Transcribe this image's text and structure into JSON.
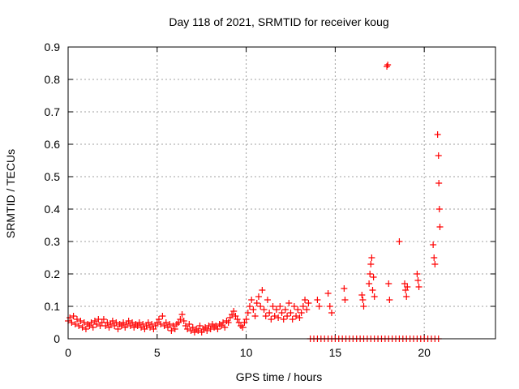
{
  "chart_data": {
    "type": "scatter",
    "title": "Day 118 of 2021, SRMTID for receiver koug",
    "xlabel": "GPS time / hours",
    "ylabel": "SRMTID / TECUs",
    "xlim": [
      0,
      24
    ],
    "ylim": [
      0,
      0.9
    ],
    "xticks": [
      0,
      5,
      10,
      15,
      20
    ],
    "xtick_labels": [
      "0",
      "5",
      "10",
      "15",
      "20"
    ],
    "yticks": [
      0,
      0.1,
      0.2,
      0.3,
      0.4,
      0.5,
      0.6,
      0.7,
      0.8,
      0.9
    ],
    "ytick_labels": [
      "0",
      "0.1",
      "0.2",
      "0.3",
      "0.4",
      "0.5",
      "0.6",
      "0.7",
      "0.8",
      "0.9"
    ],
    "grid": true,
    "marker": "+",
    "color": "#ff0000",
    "series": [
      {
        "name": "SRMTID",
        "points": [
          [
            0.0,
            0.055
          ],
          [
            0.1,
            0.065
          ],
          [
            0.2,
            0.05
          ],
          [
            0.3,
            0.07
          ],
          [
            0.4,
            0.045
          ],
          [
            0.5,
            0.06
          ],
          [
            0.6,
            0.04
          ],
          [
            0.7,
            0.055
          ],
          [
            0.8,
            0.035
          ],
          [
            0.9,
            0.05
          ],
          [
            1.0,
            0.03
          ],
          [
            1.1,
            0.045
          ],
          [
            1.2,
            0.04
          ],
          [
            1.3,
            0.05
          ],
          [
            1.4,
            0.035
          ],
          [
            1.5,
            0.055
          ],
          [
            1.6,
            0.045
          ],
          [
            1.7,
            0.06
          ],
          [
            1.8,
            0.04
          ],
          [
            1.9,
            0.05
          ],
          [
            2.0,
            0.06
          ],
          [
            2.1,
            0.04
          ],
          [
            2.2,
            0.05
          ],
          [
            2.3,
            0.035
          ],
          [
            2.4,
            0.045
          ],
          [
            2.5,
            0.055
          ],
          [
            2.6,
            0.04
          ],
          [
            2.7,
            0.05
          ],
          [
            2.8,
            0.03
          ],
          [
            2.9,
            0.045
          ],
          [
            3.0,
            0.04
          ],
          [
            3.1,
            0.05
          ],
          [
            3.2,
            0.035
          ],
          [
            3.3,
            0.045
          ],
          [
            3.4,
            0.055
          ],
          [
            3.5,
            0.04
          ],
          [
            3.6,
            0.05
          ],
          [
            3.7,
            0.035
          ],
          [
            3.8,
            0.045
          ],
          [
            3.9,
            0.04
          ],
          [
            4.0,
            0.05
          ],
          [
            4.1,
            0.035
          ],
          [
            4.2,
            0.045
          ],
          [
            4.3,
            0.03
          ],
          [
            4.4,
            0.04
          ],
          [
            4.5,
            0.05
          ],
          [
            4.6,
            0.035
          ],
          [
            4.7,
            0.045
          ],
          [
            4.8,
            0.03
          ],
          [
            4.9,
            0.04
          ],
          [
            5.0,
            0.05
          ],
          [
            5.1,
            0.06
          ],
          [
            5.2,
            0.045
          ],
          [
            5.3,
            0.07
          ],
          [
            5.4,
            0.04
          ],
          [
            5.5,
            0.05
          ],
          [
            5.6,
            0.035
          ],
          [
            5.7,
            0.045
          ],
          [
            5.8,
            0.025
          ],
          [
            5.9,
            0.04
          ],
          [
            6.0,
            0.03
          ],
          [
            6.1,
            0.045
          ],
          [
            6.2,
            0.05
          ],
          [
            6.3,
            0.06
          ],
          [
            6.4,
            0.075
          ],
          [
            6.5,
            0.055
          ],
          [
            6.6,
            0.04
          ],
          [
            6.7,
            0.03
          ],
          [
            6.8,
            0.045
          ],
          [
            6.9,
            0.025
          ],
          [
            7.0,
            0.035
          ],
          [
            7.1,
            0.02
          ],
          [
            7.2,
            0.03
          ],
          [
            7.3,
            0.025
          ],
          [
            7.4,
            0.04
          ],
          [
            7.5,
            0.02
          ],
          [
            7.6,
            0.03
          ],
          [
            7.7,
            0.035
          ],
          [
            7.8,
            0.025
          ],
          [
            7.9,
            0.04
          ],
          [
            8.0,
            0.03
          ],
          [
            8.1,
            0.045
          ],
          [
            8.2,
            0.035
          ],
          [
            8.3,
            0.04
          ],
          [
            8.4,
            0.03
          ],
          [
            8.5,
            0.045
          ],
          [
            8.6,
            0.04
          ],
          [
            8.7,
            0.05
          ],
          [
            8.8,
            0.035
          ],
          [
            8.9,
            0.055
          ],
          [
            9.0,
            0.05
          ],
          [
            9.1,
            0.065
          ],
          [
            9.2,
            0.075
          ],
          [
            9.3,
            0.085
          ],
          [
            9.4,
            0.07
          ],
          [
            9.5,
            0.06
          ],
          [
            9.6,
            0.05
          ],
          [
            9.7,
            0.04
          ],
          [
            9.8,
            0.035
          ],
          [
            9.9,
            0.05
          ],
          [
            10.0,
            0.06
          ],
          [
            10.1,
            0.08
          ],
          [
            10.2,
            0.1
          ],
          [
            10.3,
            0.12
          ],
          [
            10.4,
            0.09
          ],
          [
            10.5,
            0.07
          ],
          [
            10.6,
            0.11
          ],
          [
            10.7,
            0.13
          ],
          [
            10.8,
            0.1
          ],
          [
            10.9,
            0.15
          ],
          [
            11.0,
            0.09
          ],
          [
            11.1,
            0.07
          ],
          [
            11.2,
            0.12
          ],
          [
            11.3,
            0.08
          ],
          [
            11.4,
            0.06
          ],
          [
            11.5,
            0.1
          ],
          [
            11.6,
            0.07
          ],
          [
            11.7,
            0.09
          ],
          [
            11.8,
            0.065
          ],
          [
            11.9,
            0.1
          ],
          [
            12.0,
            0.08
          ],
          [
            12.1,
            0.06
          ],
          [
            12.2,
            0.09
          ],
          [
            12.3,
            0.07
          ],
          [
            12.4,
            0.11
          ],
          [
            12.5,
            0.08
          ],
          [
            12.6,
            0.06
          ],
          [
            12.7,
            0.1
          ],
          [
            12.8,
            0.07
          ],
          [
            12.9,
            0.09
          ],
          [
            13.0,
            0.065
          ],
          [
            13.1,
            0.08
          ],
          [
            13.2,
            0.1
          ],
          [
            13.3,
            0.12
          ],
          [
            13.4,
            0.09
          ],
          [
            13.5,
            0.11
          ],
          [
            14.0,
            0.12
          ],
          [
            14.1,
            0.1
          ],
          [
            14.6,
            0.14
          ],
          [
            14.7,
            0.1
          ],
          [
            14.8,
            0.08
          ],
          [
            15.5,
            0.155
          ],
          [
            15.55,
            0.12
          ],
          [
            16.5,
            0.135
          ],
          [
            16.55,
            0.12
          ],
          [
            16.6,
            0.1
          ],
          [
            16.9,
            0.17
          ],
          [
            16.95,
            0.2
          ],
          [
            17.0,
            0.23
          ],
          [
            17.05,
            0.25
          ],
          [
            17.1,
            0.15
          ],
          [
            17.15,
            0.19
          ],
          [
            17.2,
            0.13
          ],
          [
            17.9,
            0.84
          ],
          [
            17.95,
            0.845
          ],
          [
            18.0,
            0.17
          ],
          [
            18.05,
            0.12
          ],
          [
            18.6,
            0.3
          ],
          [
            18.9,
            0.17
          ],
          [
            18.95,
            0.15
          ],
          [
            19.0,
            0.13
          ],
          [
            19.05,
            0.16
          ],
          [
            19.6,
            0.2
          ],
          [
            19.65,
            0.18
          ],
          [
            19.7,
            0.16
          ],
          [
            20.5,
            0.29
          ],
          [
            20.55,
            0.25
          ],
          [
            20.6,
            0.23
          ],
          [
            20.75,
            0.63
          ],
          [
            20.8,
            0.565
          ],
          [
            20.82,
            0.48
          ],
          [
            20.85,
            0.4
          ],
          [
            20.88,
            0.345
          ],
          [
            13.6,
            0
          ],
          [
            13.8,
            0
          ],
          [
            14.0,
            0
          ],
          [
            14.2,
            0
          ],
          [
            14.4,
            0
          ],
          [
            14.6,
            0
          ],
          [
            14.8,
            0
          ],
          [
            15.0,
            0
          ],
          [
            15.2,
            0
          ],
          [
            15.4,
            0
          ],
          [
            15.6,
            0
          ],
          [
            15.8,
            0
          ],
          [
            16.0,
            0
          ],
          [
            16.2,
            0
          ],
          [
            16.4,
            0
          ],
          [
            16.6,
            0
          ],
          [
            16.8,
            0
          ],
          [
            17.0,
            0
          ],
          [
            17.2,
            0
          ],
          [
            17.4,
            0
          ],
          [
            17.6,
            0
          ],
          [
            17.8,
            0
          ],
          [
            18.0,
            0
          ],
          [
            18.2,
            0
          ],
          [
            18.4,
            0
          ],
          [
            18.6,
            0
          ],
          [
            18.8,
            0
          ],
          [
            19.0,
            0
          ],
          [
            19.2,
            0
          ],
          [
            19.4,
            0
          ],
          [
            19.6,
            0
          ],
          [
            19.8,
            0
          ],
          [
            20.0,
            0
          ],
          [
            20.2,
            0
          ],
          [
            20.4,
            0
          ],
          [
            20.6,
            0
          ],
          [
            20.8,
            0
          ]
        ]
      }
    ]
  }
}
